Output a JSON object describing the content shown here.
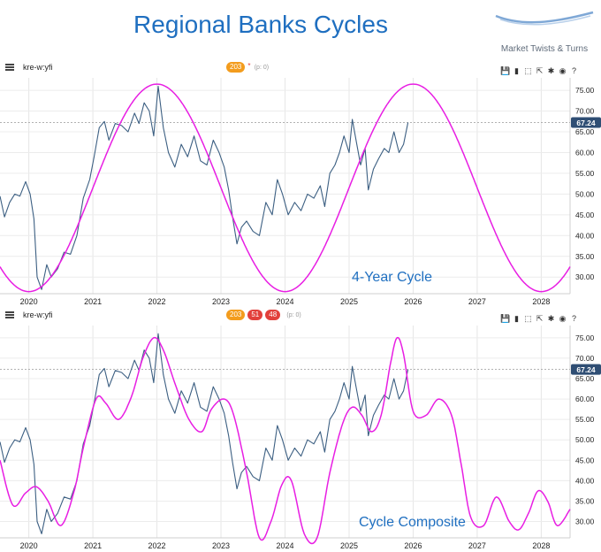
{
  "header": {
    "title": "Regional Banks Cycles",
    "logo_text": "Market Twists & Turns"
  },
  "colors": {
    "price": "#3c5f82",
    "cycle": "#e81ee3",
    "title": "#1f6fc0",
    "last_price_bg": "#2f4e74"
  },
  "panels": [
    {
      "symbol": "kre-w:yfi",
      "badges": [
        {
          "text": "203",
          "color": "orange"
        }
      ],
      "p_note": "(p: 0)",
      "star": "*",
      "tool_icons": [
        "save-icon",
        "bar-chart-icon",
        "expand-icon",
        "fullscreen-icon",
        "crosshair-icon",
        "eye-icon",
        "help-icon"
      ]
    },
    {
      "symbol": "kre-w:yfi",
      "badges": [
        {
          "text": "203",
          "color": "orange"
        },
        {
          "text": "51",
          "color": "red"
        },
        {
          "text": "48",
          "color": "red"
        }
      ],
      "p_note": "(p: 0)",
      "star": "",
      "tool_icons": [
        "save-icon",
        "bar-chart-icon",
        "expand-icon",
        "fullscreen-icon",
        "crosshair-icon",
        "eye-icon",
        "help-icon"
      ]
    }
  ],
  "chart_data": [
    {
      "type": "line",
      "annotation": "4-Year Cycle",
      "last_price_label": "67.24",
      "last_price": 67.24,
      "ylim": [
        26,
        78
      ],
      "xlim": [
        2019.55,
        2028.45
      ],
      "yticks": [
        "30.00",
        "35.00",
        "40.00",
        "45.00",
        "50.00",
        "55.00",
        "60.00",
        "65.00",
        "70.00",
        "75.00"
      ],
      "xticks": [
        "2020",
        "2021",
        "2022",
        "2023",
        "2024",
        "2025",
        "2026",
        "2027",
        "2028"
      ],
      "series": [
        {
          "role": "price",
          "x": [
            2019.55,
            2019.62,
            2019.7,
            2019.78,
            2019.86,
            2019.95,
            2020.02,
            2020.08,
            2020.13,
            2020.2,
            2020.28,
            2020.35,
            2020.45,
            2020.55,
            2020.65,
            2020.75,
            2020.85,
            2020.95,
            2021.02,
            2021.1,
            2021.18,
            2021.25,
            2021.35,
            2021.45,
            2021.55,
            2021.65,
            2021.72,
            2021.8,
            2021.88,
            2021.95,
            2022.02,
            2022.1,
            2022.18,
            2022.28,
            2022.38,
            2022.48,
            2022.58,
            2022.68,
            2022.78,
            2022.88,
            2022.97,
            2023.05,
            2023.12,
            2023.18,
            2023.25,
            2023.32,
            2023.4,
            2023.5,
            2023.6,
            2023.7,
            2023.8,
            2023.88,
            2023.96,
            2024.05,
            2024.15,
            2024.25,
            2024.35,
            2024.45,
            2024.55,
            2024.62,
            2024.7,
            2024.78,
            2024.85,
            2024.92,
            2025.0,
            2025.05,
            2025.12,
            2025.18,
            2025.25,
            2025.3,
            2025.38,
            2025.46,
            2025.55,
            2025.62,
            2025.7,
            2025.78,
            2025.85,
            2025.92
          ],
          "y": [
            49.5,
            44.5,
            48,
            50,
            49.5,
            53,
            50,
            44,
            30,
            27,
            33,
            30,
            32,
            36,
            35.5,
            40,
            49,
            53.5,
            59,
            66,
            67.5,
            63,
            67,
            66.5,
            65,
            69.5,
            67,
            72,
            70,
            64,
            76,
            66,
            60,
            56.5,
            62,
            59,
            64,
            58,
            57,
            63,
            60,
            56.5,
            51,
            44.5,
            38,
            42,
            43.5,
            41,
            40,
            48,
            45,
            53.5,
            50,
            45,
            48,
            46,
            50,
            49,
            52,
            47,
            55,
            57,
            60,
            64,
            60,
            68,
            62,
            57,
            61,
            51,
            56,
            58.5,
            61,
            60,
            65,
            60,
            62,
            67.24
          ]
        },
        {
          "role": "cycle",
          "period_years": 4,
          "trough_year": 2020.0,
          "amplitude": 25,
          "center": 51.5
        }
      ]
    },
    {
      "type": "line",
      "annotation": "Cycle Composite",
      "last_price_label": "67.24",
      "last_price": 67.24,
      "ylim": [
        26,
        78
      ],
      "xlim": [
        2019.55,
        2028.45
      ],
      "yticks": [
        "30.00",
        "35.00",
        "40.00",
        "45.00",
        "50.00",
        "55.00",
        "60.00",
        "65.00",
        "70.00",
        "75.00"
      ],
      "xticks": [
        "2020",
        "2021",
        "2022",
        "2023",
        "2024",
        "2025",
        "2026",
        "2027",
        "2028"
      ],
      "series": [
        {
          "role": "price",
          "x": [
            2019.55,
            2019.62,
            2019.7,
            2019.78,
            2019.86,
            2019.95,
            2020.02,
            2020.08,
            2020.13,
            2020.2,
            2020.28,
            2020.35,
            2020.45,
            2020.55,
            2020.65,
            2020.75,
            2020.85,
            2020.95,
            2021.02,
            2021.1,
            2021.18,
            2021.25,
            2021.35,
            2021.45,
            2021.55,
            2021.65,
            2021.72,
            2021.8,
            2021.88,
            2021.95,
            2022.02,
            2022.1,
            2022.18,
            2022.28,
            2022.38,
            2022.48,
            2022.58,
            2022.68,
            2022.78,
            2022.88,
            2022.97,
            2023.05,
            2023.12,
            2023.18,
            2023.25,
            2023.32,
            2023.4,
            2023.5,
            2023.6,
            2023.7,
            2023.8,
            2023.88,
            2023.96,
            2024.05,
            2024.15,
            2024.25,
            2024.35,
            2024.45,
            2024.55,
            2024.62,
            2024.7,
            2024.78,
            2024.85,
            2024.92,
            2025.0,
            2025.05,
            2025.12,
            2025.18,
            2025.25,
            2025.3,
            2025.38,
            2025.46,
            2025.55,
            2025.62,
            2025.7,
            2025.78,
            2025.85,
            2025.92
          ],
          "y": [
            49.5,
            44.5,
            48,
            50,
            49.5,
            53,
            50,
            44,
            30,
            27,
            33,
            30,
            32,
            36,
            35.5,
            40,
            49,
            53.5,
            59,
            66,
            67.5,
            63,
            67,
            66.5,
            65,
            69.5,
            67,
            72,
            70,
            64,
            76,
            66,
            60,
            56.5,
            62,
            59,
            64,
            58,
            57,
            63,
            60,
            56.5,
            51,
            44.5,
            38,
            42,
            43.5,
            41,
            40,
            48,
            45,
            53.5,
            50,
            45,
            48,
            46,
            50,
            49,
            52,
            47,
            55,
            57,
            60,
            64,
            60,
            68,
            62,
            57,
            61,
            51,
            56,
            58.5,
            61,
            60,
            65,
            60,
            62,
            67.24
          ]
        },
        {
          "role": "cycle",
          "x": [
            2019.55,
            2019.75,
            2019.95,
            2020.12,
            2020.3,
            2020.5,
            2020.7,
            2020.85,
            2021.05,
            2021.2,
            2021.4,
            2021.6,
            2021.78,
            2021.95,
            2022.1,
            2022.3,
            2022.5,
            2022.7,
            2022.85,
            2023.05,
            2023.2,
            2023.4,
            2023.6,
            2023.78,
            2023.95,
            2024.1,
            2024.3,
            2024.5,
            2024.7,
            2024.9,
            2025.05,
            2025.2,
            2025.35,
            2025.5,
            2025.65,
            2025.75,
            2025.85,
            2026.0,
            2026.2,
            2026.4,
            2026.6,
            2026.75,
            2026.9,
            2027.1,
            2027.3,
            2027.5,
            2027.65,
            2027.8,
            2027.95,
            2028.1,
            2028.25,
            2028.45
          ],
          "y": [
            45,
            34,
            37,
            38.5,
            35,
            29,
            37,
            48,
            60,
            59,
            55,
            60.5,
            70,
            75,
            72,
            63,
            55,
            52,
            57.5,
            60,
            56,
            42,
            26,
            30,
            39,
            40,
            27,
            26,
            42,
            54,
            58,
            56,
            52,
            56,
            69,
            75,
            71,
            57,
            56,
            60,
            56,
            44,
            31,
            29,
            36,
            30,
            28,
            32,
            37.5,
            35,
            29,
            33
          ]
        }
      ]
    }
  ]
}
